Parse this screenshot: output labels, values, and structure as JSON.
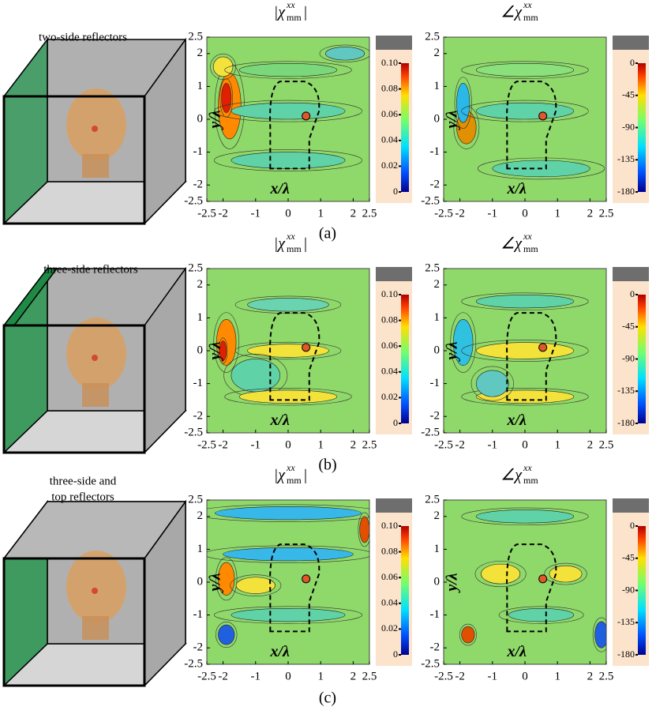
{
  "panels": [
    {
      "label": "(a)",
      "scene": [
        "two-side reflectors"
      ]
    },
    {
      "label": "(b)",
      "scene": [
        "three-side reflectors"
      ]
    },
    {
      "label": "(c)",
      "scene": [
        "three-side and",
        "top reflectors"
      ]
    }
  ],
  "titles": [
    {
      "main": "|χ",
      "sup": "xx",
      "sub": "mm",
      "end": "|"
    },
    {
      "main": "∠χ",
      "sup": "xx",
      "sub": "mm"
    }
  ],
  "axes": {
    "xlabel": "x/λ",
    "ylabel": "y/λ",
    "xlim": [
      -2.5,
      2.5
    ],
    "ylim": [
      -2.5,
      2.5
    ],
    "xticks": [
      -2.5,
      -2,
      -1,
      0,
      1,
      2,
      2.5
    ],
    "yticks": [
      2.5,
      2,
      1,
      0,
      -1,
      -2,
      -2.5
    ]
  },
  "colorbars": [
    {
      "lim": [
        0,
        0.1
      ],
      "ticks": [
        {
          "value": 0.1,
          "label": "0.10"
        },
        0.08,
        0.06,
        0.04,
        0.02,
        0
      ]
    },
    {
      "lim": [
        -180,
        0
      ],
      "ticks": [
        0,
        -45,
        -90,
        -135,
        -180
      ]
    }
  ]
}
